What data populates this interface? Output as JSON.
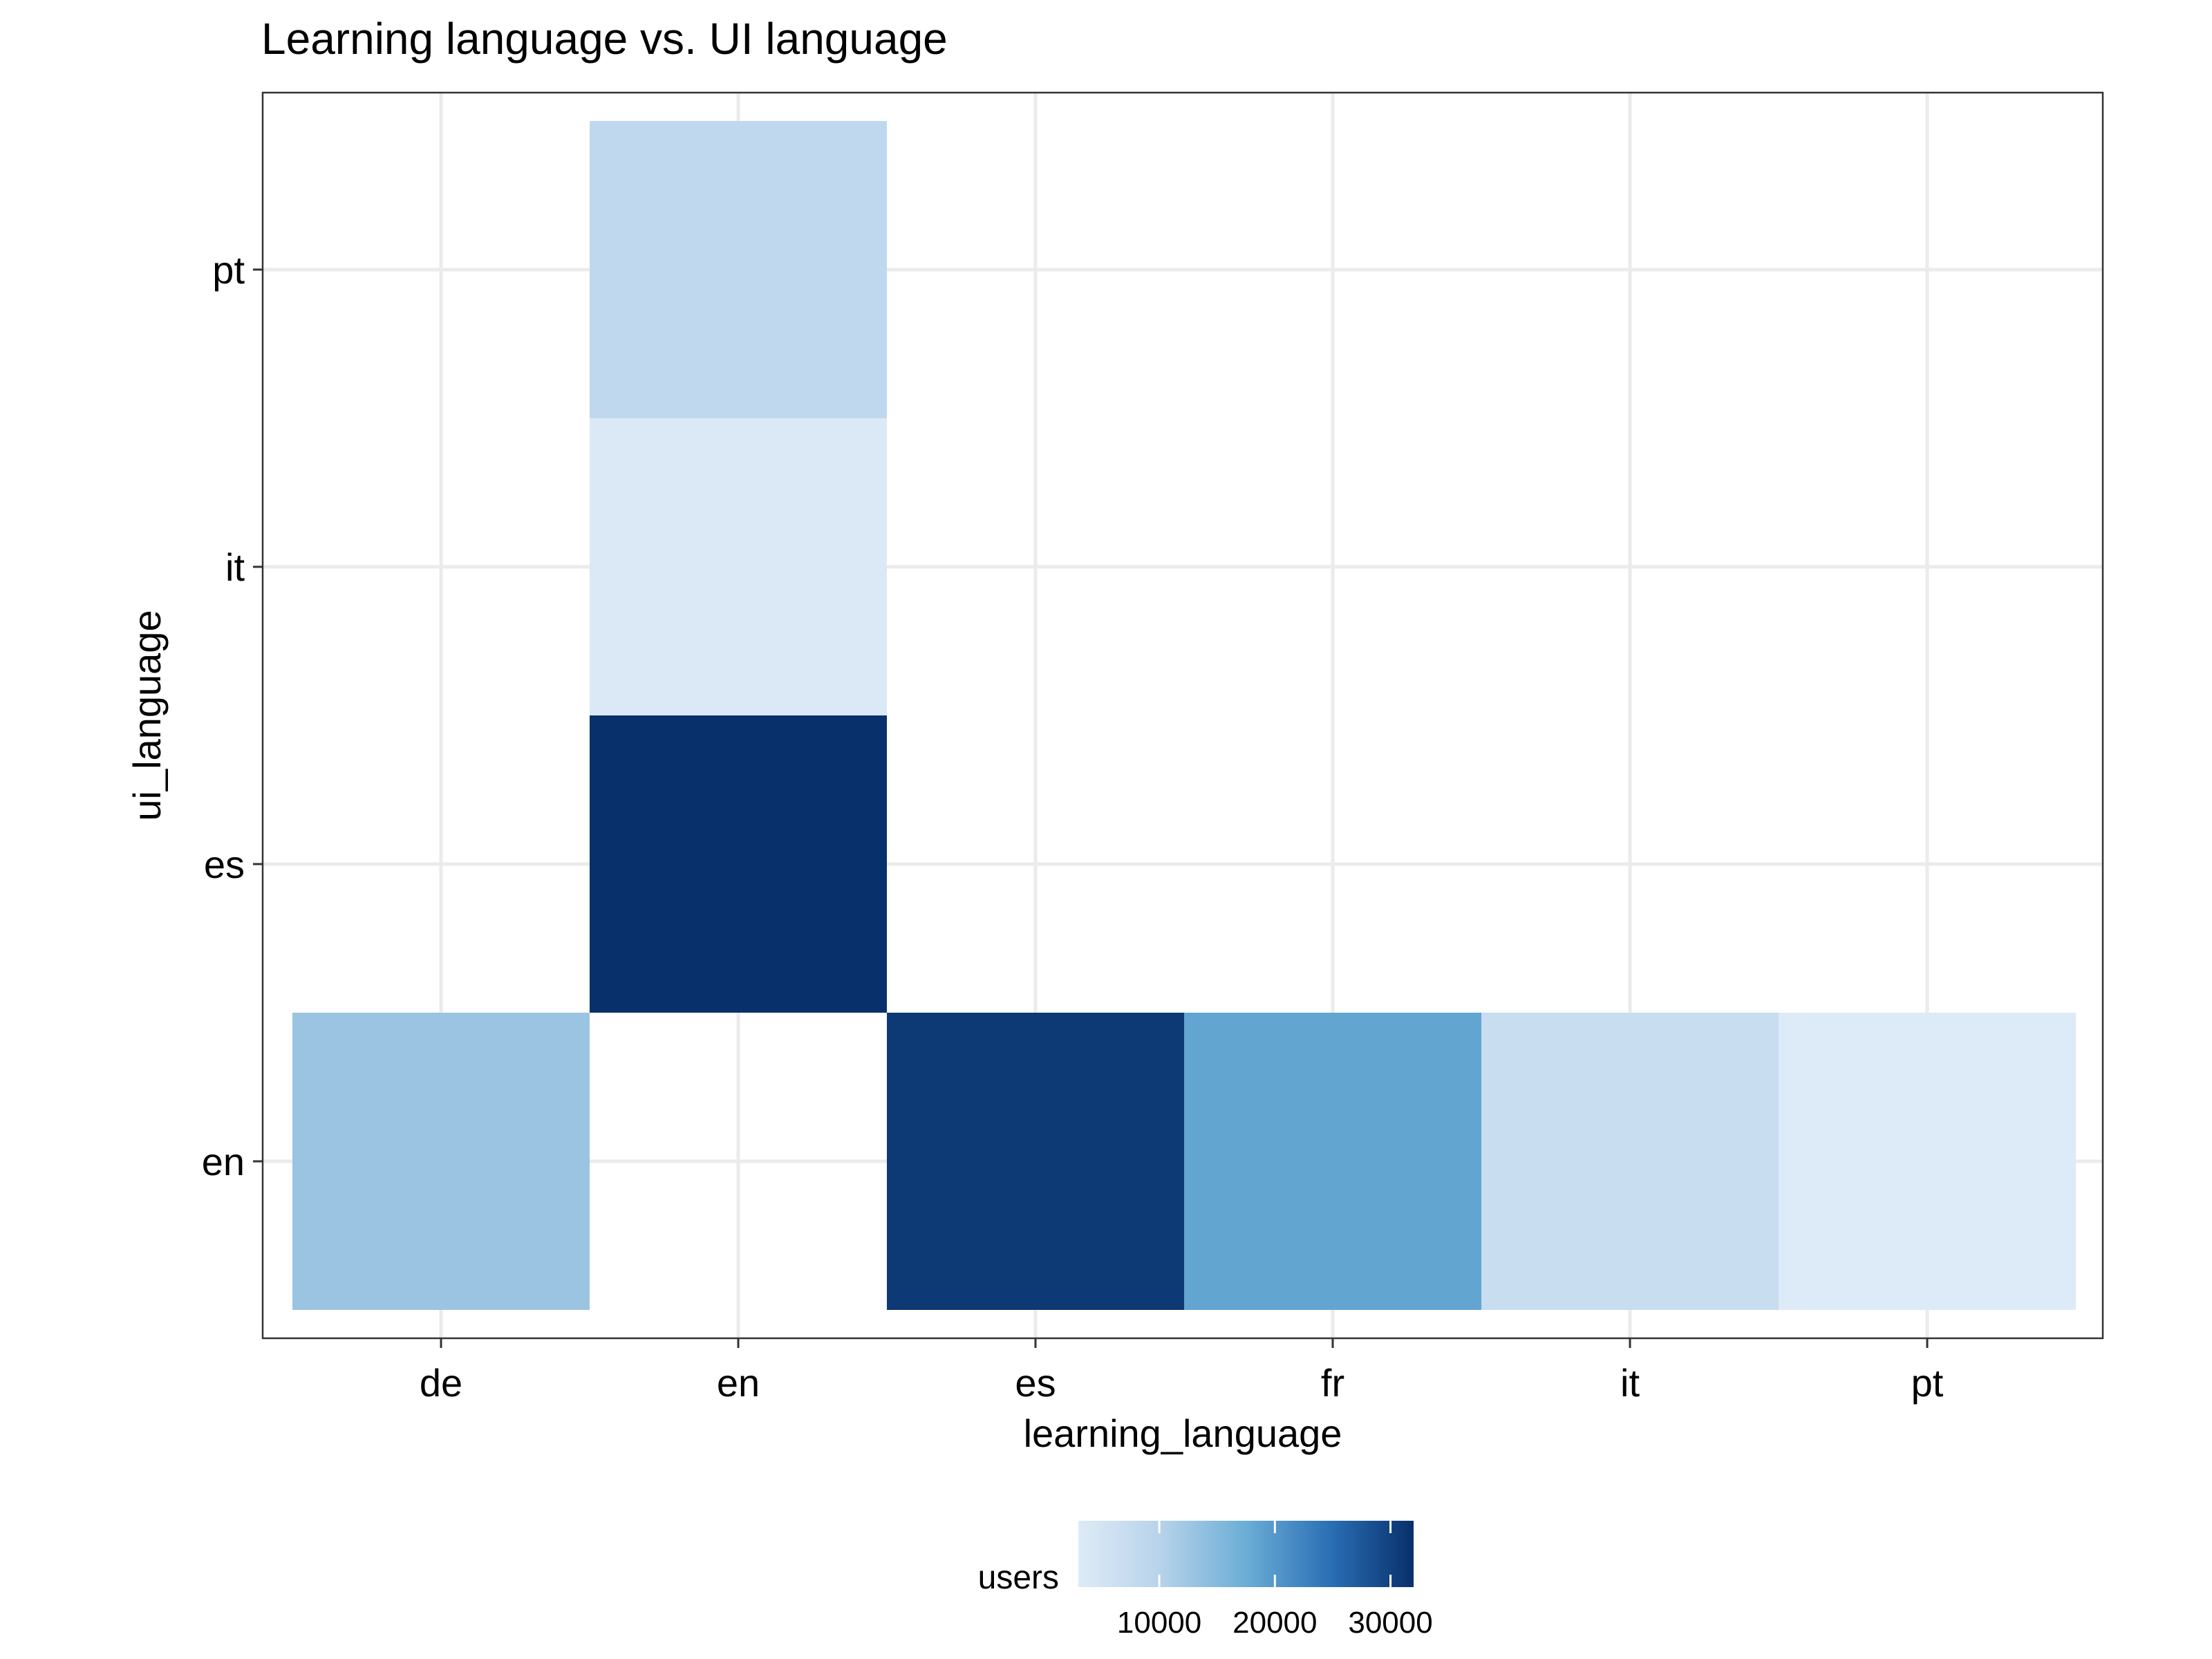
{
  "chart_data": {
    "type": "heatmap",
    "title": "Learning language vs. UI language",
    "xlabel": "learning_language",
    "ylabel": "ui_language",
    "x_categories": [
      "de",
      "en",
      "es",
      "fr",
      "it",
      "pt"
    ],
    "y_categories": [
      "en",
      "es",
      "it",
      "pt"
    ],
    "cells": [
      {
        "x": "de",
        "y": "en",
        "value": 13000
      },
      {
        "x": "es",
        "y": "en",
        "value": 31000
      },
      {
        "x": "fr",
        "y": "en",
        "value": 18500
      },
      {
        "x": "it",
        "y": "en",
        "value": 7000
      },
      {
        "x": "pt",
        "y": "en",
        "value": 3200
      },
      {
        "x": "en",
        "y": "es",
        "value": 32000
      },
      {
        "x": "en",
        "y": "it",
        "value": 3500
      },
      {
        "x": "en",
        "y": "pt",
        "value": 8500
      }
    ],
    "grid": true,
    "legend": {
      "title": "users",
      "position": "bottom",
      "ticks": [
        10000,
        20000,
        30000
      ],
      "range": [
        3000,
        32000
      ],
      "low_color": "#deebf7",
      "high_color": "#08306b"
    }
  }
}
